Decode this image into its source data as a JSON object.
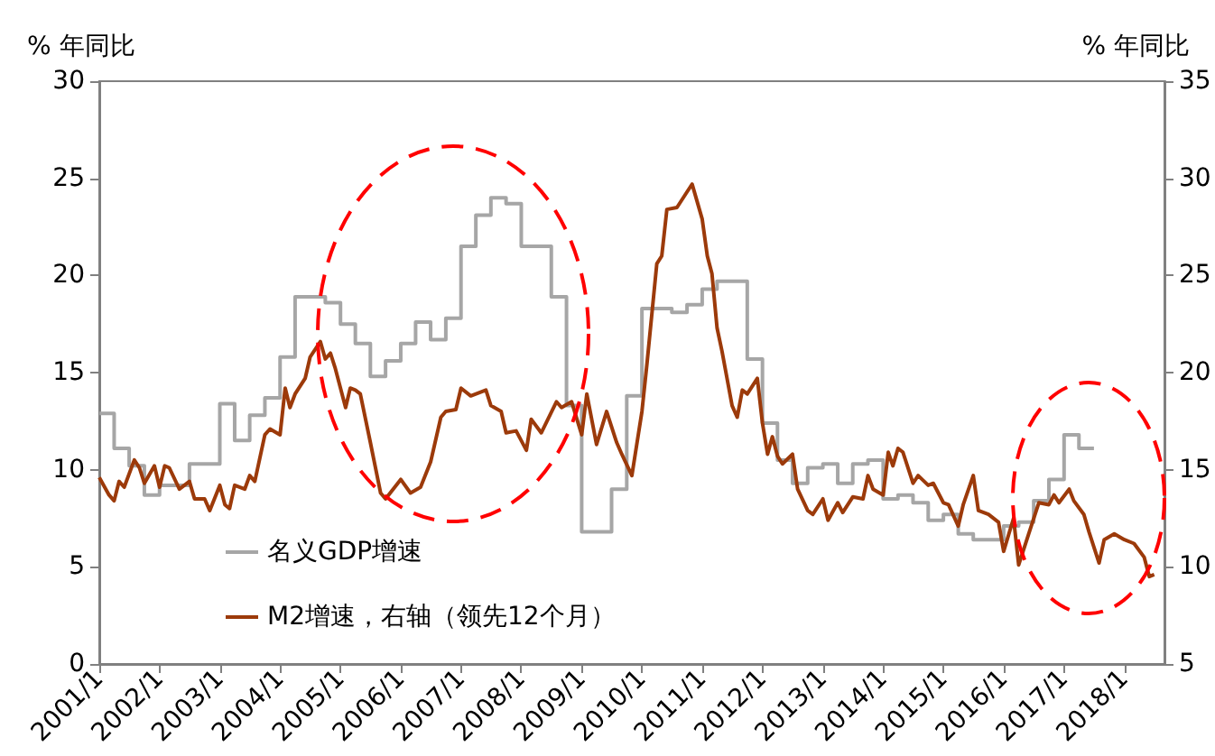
{
  "chart_data": {
    "type": "line",
    "ylabel": "% 年同比",
    "y2label": "% 年同比",
    "legend": "bottom left",
    "xlim": [
      "2001-01",
      "2018-09"
    ],
    "xticks": [
      {
        "value": "2001-01",
        "label": "2001/1"
      },
      {
        "value": "2002-01",
        "label": "2002/1"
      },
      {
        "value": "2003-01",
        "label": "2003/1"
      },
      {
        "value": "2004-01",
        "label": "2004/1"
      },
      {
        "value": "2005-01",
        "label": "2005/1"
      },
      {
        "value": "2006-01",
        "label": "2006/1"
      },
      {
        "value": "2007-01",
        "label": "2007/1"
      },
      {
        "value": "2008-01",
        "label": "2008/1"
      },
      {
        "value": "2009-01",
        "label": "2009/1"
      },
      {
        "value": "2010-01",
        "label": "2010/1"
      },
      {
        "value": "2011-01",
        "label": "2011/1"
      },
      {
        "value": "2012-01",
        "label": "2012/1"
      },
      {
        "value": "2013-01",
        "label": "2013/1"
      },
      {
        "value": "2014-01",
        "label": "2014/1"
      },
      {
        "value": "2015-01",
        "label": "2015/1"
      },
      {
        "value": "2016-01",
        "label": "2016/1"
      },
      {
        "value": "2017-01",
        "label": "2017/1"
      },
      {
        "value": "2018-01",
        "label": "2018/1"
      }
    ],
    "ylim": [
      0,
      30
    ],
    "yticks": [
      0,
      5,
      10,
      15,
      20,
      25,
      30
    ],
    "y2lim": [
      5,
      35
    ],
    "y2ticks": [
      5,
      10,
      15,
      20,
      25,
      30,
      35
    ],
    "series": [
      {
        "name": "名义GDP增速",
        "type": "step",
        "color": "#a6a6a6",
        "x": [
          "2001-01",
          "2001-04",
          "2001-07",
          "2001-10",
          "2002-01",
          "2002-07",
          "2003-01",
          "2003-04",
          "2003-07",
          "2003-10",
          "2004-01",
          "2004-04",
          "2004-10",
          "2005-01",
          "2005-04",
          "2005-07",
          "2005-10",
          "2006-01",
          "2006-04",
          "2006-07",
          "2006-10",
          "2007-01",
          "2007-04",
          "2007-07",
          "2007-10",
          "2008-01",
          "2008-07",
          "2008-10",
          "2009-01",
          "2009-07",
          "2009-10",
          "2010-01",
          "2010-07",
          "2010-10",
          "2011-01",
          "2011-04",
          "2011-10",
          "2012-01",
          "2012-04",
          "2012-07",
          "2012-10",
          "2013-01",
          "2013-04",
          "2013-07",
          "2013-10",
          "2014-01",
          "2014-04",
          "2014-07",
          "2014-10",
          "2015-01",
          "2015-04",
          "2015-07",
          "2016-01",
          "2016-04",
          "2016-07",
          "2016-10",
          "2017-01",
          "2017-04",
          "2017-07"
        ],
        "values": [
          12.9,
          11.1,
          10.2,
          8.7,
          9.2,
          10.3,
          13.4,
          11.5,
          12.8,
          13.7,
          15.8,
          18.9,
          18.6,
          17.5,
          16.5,
          14.8,
          15.6,
          16.5,
          17.6,
          16.7,
          17.8,
          21.5,
          23.1,
          24.0,
          23.7,
          21.5,
          18.9,
          13.3,
          6.8,
          9.0,
          13.8,
          18.3,
          18.1,
          18.5,
          19.3,
          19.7,
          15.7,
          12.4,
          10.5,
          9.3,
          10.1,
          10.3,
          9.3,
          10.3,
          10.5,
          8.5,
          8.7,
          8.3,
          7.4,
          7.7,
          6.7,
          6.4,
          7.1,
          7.3,
          8.4,
          9.5,
          11.8,
          11.1,
          11.1
        ]
      },
      {
        "name": "M2增速，右轴（领先12个月）",
        "axis": "y2",
        "color": "#9c3a0a",
        "x": [
          "2001-01",
          "2001-03",
          "2001-04",
          "2001-05",
          "2001-06",
          "2001-08",
          "2001-09",
          "2001-10",
          "2001-12",
          "2002-01",
          "2002-02",
          "2002-03",
          "2002-05",
          "2002-07",
          "2002-08",
          "2002-10",
          "2002-11",
          "2003-01",
          "2003-02",
          "2003-03",
          "2003-04",
          "2003-06",
          "2003-07",
          "2003-08",
          "2003-10",
          "2003-11",
          "2004-01",
          "2004-02",
          "2004-03",
          "2004-04",
          "2004-06",
          "2004-07",
          "2004-09",
          "2004-10",
          "2004-11",
          "2004-12",
          "2005-02",
          "2005-03",
          "2005-04",
          "2005-05",
          "2005-07",
          "2005-09",
          "2005-10",
          "2006-01",
          "2006-03",
          "2006-05",
          "2006-07",
          "2006-09",
          "2006-10",
          "2006-12",
          "2007-01",
          "2007-03",
          "2007-06",
          "2007-07",
          "2007-09",
          "2007-10",
          "2007-12",
          "2008-02",
          "2008-03",
          "2008-05",
          "2008-08",
          "2008-09",
          "2008-11",
          "2009-01",
          "2009-02",
          "2009-04",
          "2009-06",
          "2009-08",
          "2009-09",
          "2009-11",
          "2010-01",
          "2010-02",
          "2010-04",
          "2010-05",
          "2010-06",
          "2010-08",
          "2010-10",
          "2010-11",
          "2011-01",
          "2011-02",
          "2011-03",
          "2011-04",
          "2011-05",
          "2011-07",
          "2011-08",
          "2011-09",
          "2011-10",
          "2011-12",
          "2012-01",
          "2012-02",
          "2012-03",
          "2012-04",
          "2012-05",
          "2012-07",
          "2012-08",
          "2012-10",
          "2012-11",
          "2013-01",
          "2013-02",
          "2013-04",
          "2013-05",
          "2013-07",
          "2013-09",
          "2013-10",
          "2013-11",
          "2014-01",
          "2014-02",
          "2014-03",
          "2014-04",
          "2014-05",
          "2014-07",
          "2014-08",
          "2014-10",
          "2014-11",
          "2015-01",
          "2015-02",
          "2015-04",
          "2015-05",
          "2015-07",
          "2015-08",
          "2015-10",
          "2015-12",
          "2016-01",
          "2016-03",
          "2016-04",
          "2016-06",
          "2016-08",
          "2016-10",
          "2016-11",
          "2016-12",
          "2017-02",
          "2017-03",
          "2017-05",
          "2017-06",
          "2017-08",
          "2017-09",
          "2017-11",
          "2018-01",
          "2018-03",
          "2018-05",
          "2018-06",
          "2018-07"
        ],
        "values": [
          14.6,
          13.7,
          13.4,
          14.4,
          14.1,
          15.5,
          15.1,
          14.3,
          15.2,
          14.1,
          15.2,
          15.1,
          14.0,
          14.4,
          13.5,
          13.5,
          12.9,
          14.2,
          13.2,
          13.0,
          14.2,
          14.0,
          14.7,
          14.4,
          16.8,
          17.1,
          16.8,
          19.2,
          18.2,
          18.9,
          19.7,
          20.8,
          21.6,
          20.7,
          21.0,
          20.2,
          18.2,
          19.2,
          19.1,
          18.9,
          16.4,
          13.8,
          13.5,
          14.5,
          13.8,
          14.1,
          15.4,
          17.7,
          18.0,
          18.1,
          19.2,
          18.8,
          19.1,
          18.3,
          18.0,
          16.9,
          17.0,
          16.0,
          17.6,
          16.9,
          18.5,
          18.2,
          18.5,
          16.8,
          18.9,
          16.3,
          18.0,
          16.4,
          15.8,
          14.7,
          18.0,
          20.5,
          25.6,
          26.0,
          28.4,
          28.5,
          29.3,
          29.7,
          27.9,
          26.0,
          25.1,
          22.3,
          21.1,
          18.3,
          17.7,
          19.1,
          18.9,
          19.7,
          17.4,
          15.8,
          16.7,
          15.7,
          15.3,
          15.8,
          14.0,
          12.9,
          12.7,
          13.5,
          12.4,
          13.3,
          12.8,
          13.6,
          13.5,
          14.7,
          14.0,
          13.7,
          15.9,
          15.2,
          16.1,
          15.9,
          14.3,
          14.7,
          14.2,
          14.3,
          13.3,
          13.2,
          12.1,
          13.2,
          14.7,
          12.9,
          12.7,
          12.3,
          10.8,
          12.5,
          10.1,
          11.7,
          13.3,
          13.2,
          13.7,
          13.3,
          14.0,
          13.4,
          12.7,
          11.8,
          10.2,
          11.4,
          11.7,
          11.4,
          11.2,
          10.5,
          9.5,
          9.6
        ]
      }
    ]
  }
}
